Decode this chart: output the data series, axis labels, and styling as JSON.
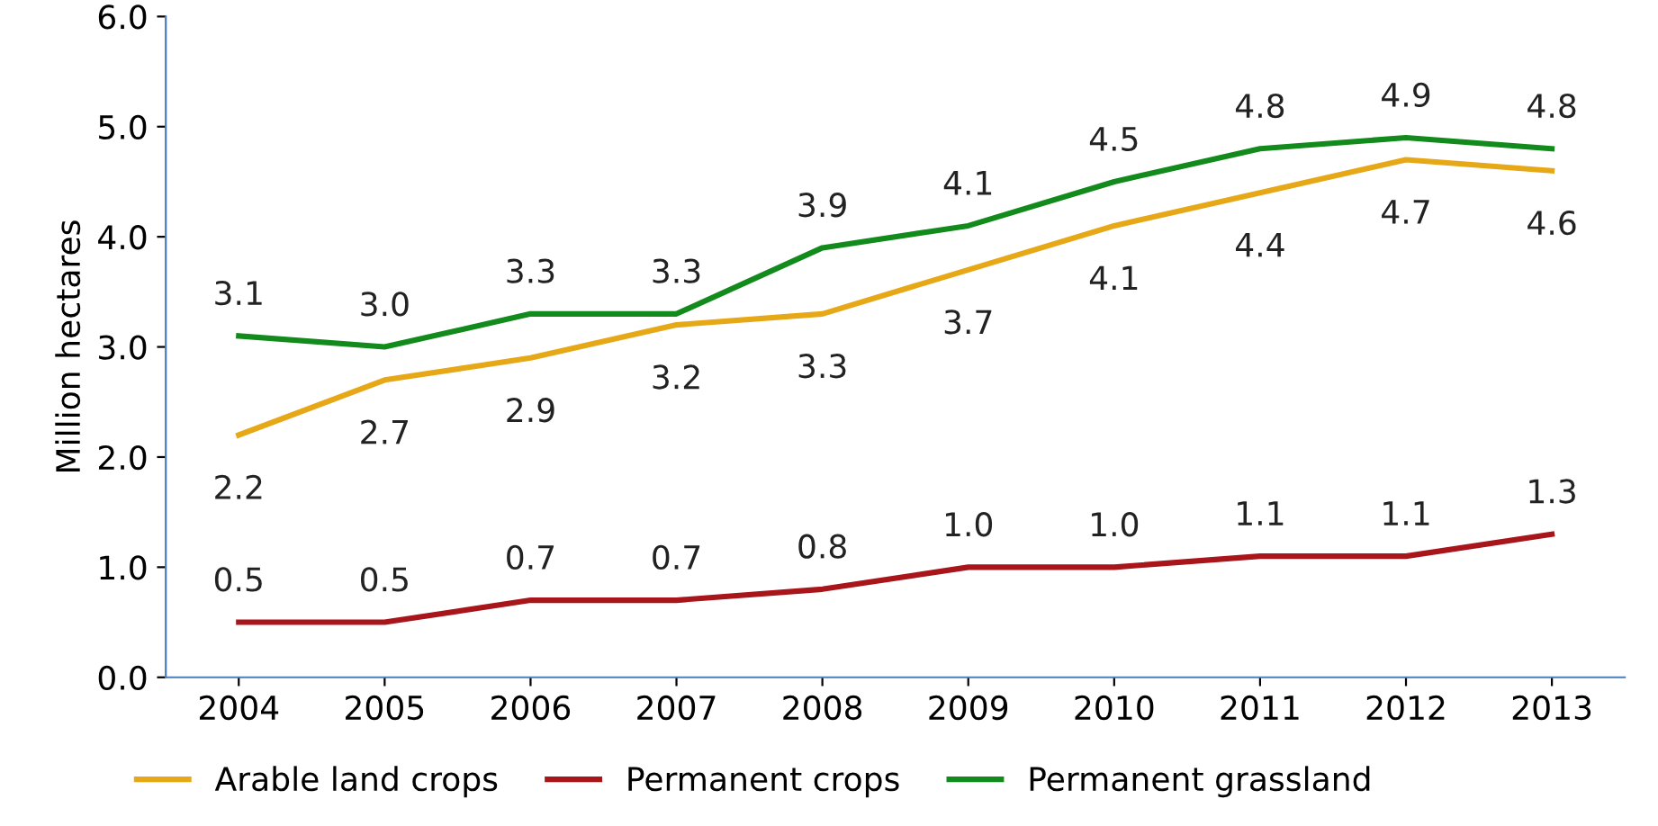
{
  "chart_data": {
    "type": "line",
    "ylabel": "Million hectares",
    "categories": [
      "2004",
      "2005",
      "2006",
      "2007",
      "2008",
      "2009",
      "2010",
      "2011",
      "2012",
      "2013"
    ],
    "series": [
      {
        "name": "Arable land crops",
        "color": "#e6a817",
        "values": [
          2.2,
          2.7,
          2.9,
          3.2,
          3.3,
          3.7,
          4.1,
          4.4,
          4.7,
          4.6
        ],
        "value_labels": [
          "2.2",
          "2.7",
          "2.9",
          "3.2",
          "3.3",
          "3.7",
          "4.1",
          "4.4",
          "4.7",
          "4.6"
        ]
      },
      {
        "name": "Permanent crops",
        "color": "#a8161b",
        "values": [
          0.5,
          0.5,
          0.7,
          0.7,
          0.8,
          1.0,
          1.0,
          1.1,
          1.1,
          1.3
        ],
        "value_labels": [
          "0.5",
          "0.5",
          "0.7",
          "0.7",
          "0.8",
          "1.0",
          "1.0",
          "1.1",
          "1.1",
          "1.3"
        ]
      },
      {
        "name": "Permanent grassland",
        "color": "#138a1c",
        "values": [
          3.1,
          3.0,
          3.3,
          3.3,
          3.9,
          4.1,
          4.5,
          4.8,
          4.9,
          4.8
        ],
        "value_labels": [
          "3.1",
          "3.0",
          "3.3",
          "3.3",
          "3.9",
          "4.1",
          "4.5",
          "4.8",
          "4.9",
          "4.8"
        ]
      }
    ],
    "ylim": [
      0,
      6
    ],
    "yticks": [
      {
        "value": 0,
        "label": "0.0"
      },
      {
        "value": 1,
        "label": "1.0"
      },
      {
        "value": 2,
        "label": "2.0"
      },
      {
        "value": 3,
        "label": "3.0"
      },
      {
        "value": 4,
        "label": "4.0"
      },
      {
        "value": 5,
        "label": "5.0"
      },
      {
        "value": 6,
        "label": "6.0"
      }
    ],
    "legend": "bottom",
    "grid": false,
    "marker": "none",
    "line_style": "solid"
  }
}
